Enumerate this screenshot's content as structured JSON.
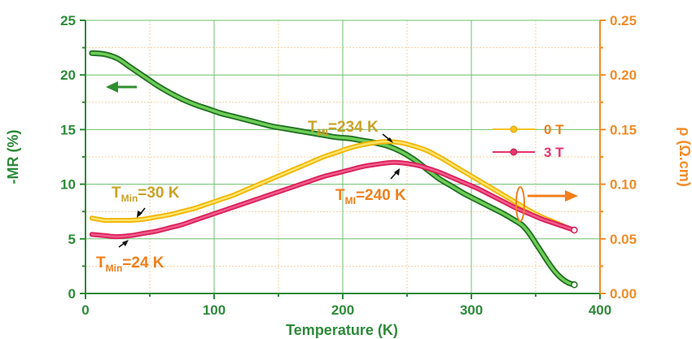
{
  "colors": {
    "left_axis": "#2e8b3a",
    "right_axis": "#f28c28",
    "grid_major": "#6fc06f",
    "grid_minor": "#f6cf9e",
    "mr_series": "#2f8f2f",
    "zero_field": "#f6c21c",
    "three_tesla": "#e8336a",
    "annotation_ochre": "#c9a227",
    "annotation_orange": "#f07f1d"
  },
  "chart_data": {
    "type": "line",
    "xlabel": "Temperature (K)",
    "ylabel_left": "-MR (%)",
    "ylabel_right": "ρ (Ω.cm)",
    "xlim": [
      0,
      400
    ],
    "ylim_left": [
      0,
      25
    ],
    "ylim_right": [
      0,
      0.25
    ],
    "x_ticks": [
      "0",
      "100",
      "200",
      "300",
      "400"
    ],
    "y_left_ticks": [
      "0",
      "5",
      "10",
      "15",
      "20",
      "25"
    ],
    "y_right_ticks": [
      "0.00",
      "0.05",
      "0.10",
      "0.15",
      "0.20",
      "0.25"
    ],
    "grid": true,
    "legend_position": "right",
    "series": [
      {
        "name": "",
        "axis": "left",
        "x": [
          5,
          15,
          25,
          35,
          45,
          55,
          65,
          75,
          85,
          95,
          105,
          115,
          125,
          135,
          145,
          155,
          165,
          175,
          185,
          195,
          205,
          215,
          225,
          235,
          245,
          255,
          265,
          275,
          285,
          295,
          305,
          315,
          325,
          335,
          340,
          345,
          350,
          355,
          360,
          365,
          370,
          375,
          380
        ],
        "y": [
          22.0,
          21.9,
          21.5,
          20.7,
          19.9,
          19.1,
          18.4,
          17.8,
          17.3,
          16.9,
          16.5,
          16.2,
          15.9,
          15.6,
          15.3,
          15.1,
          14.9,
          14.7,
          14.5,
          14.3,
          14.2,
          14.0,
          13.8,
          13.5,
          13.0,
          12.3,
          11.4,
          10.5,
          9.8,
          9.1,
          8.5,
          7.9,
          7.3,
          6.6,
          6.2,
          5.5,
          4.6,
          3.7,
          2.8,
          2.0,
          1.4,
          1.0,
          0.8
        ]
      },
      {
        "name": "0 T",
        "axis": "right",
        "x": [
          5,
          15,
          25,
          35,
          45,
          55,
          65,
          75,
          85,
          95,
          105,
          115,
          125,
          135,
          145,
          155,
          165,
          175,
          185,
          195,
          205,
          215,
          225,
          234,
          245,
          255,
          265,
          275,
          285,
          295,
          305,
          315,
          325,
          335,
          345,
          355,
          365,
          375,
          380
        ],
        "y": [
          0.069,
          0.067,
          0.067,
          0.067,
          0.068,
          0.07,
          0.072,
          0.075,
          0.078,
          0.082,
          0.086,
          0.09,
          0.095,
          0.1,
          0.105,
          0.11,
          0.115,
          0.12,
          0.125,
          0.129,
          0.133,
          0.136,
          0.138,
          0.139,
          0.138,
          0.135,
          0.131,
          0.125,
          0.118,
          0.111,
          0.104,
          0.097,
          0.09,
          0.083,
          0.076,
          0.07,
          0.065,
          0.06,
          0.058
        ]
      },
      {
        "name": "3 T",
        "axis": "right",
        "x": [
          5,
          15,
          24,
          35,
          45,
          55,
          65,
          75,
          85,
          95,
          105,
          115,
          125,
          135,
          145,
          155,
          165,
          175,
          185,
          195,
          205,
          215,
          225,
          240,
          255,
          265,
          275,
          285,
          295,
          305,
          315,
          325,
          335,
          345,
          355,
          365,
          375,
          380
        ],
        "y": [
          0.054,
          0.053,
          0.052,
          0.053,
          0.055,
          0.057,
          0.06,
          0.063,
          0.067,
          0.071,
          0.075,
          0.079,
          0.083,
          0.087,
          0.091,
          0.095,
          0.099,
          0.103,
          0.107,
          0.11,
          0.113,
          0.116,
          0.118,
          0.12,
          0.118,
          0.115,
          0.111,
          0.106,
          0.101,
          0.096,
          0.09,
          0.084,
          0.078,
          0.073,
          0.068,
          0.064,
          0.06,
          0.058
        ]
      }
    ],
    "annotations": [
      {
        "main": "T",
        "sub": "MI",
        "value": "=234 K"
      },
      {
        "main": "T",
        "sub": "Min",
        "value": "=30 K"
      },
      {
        "main": "T",
        "sub": "MI",
        "value": "=240 K"
      },
      {
        "main": "T",
        "sub": "Min",
        "value": "=24 K"
      }
    ]
  }
}
